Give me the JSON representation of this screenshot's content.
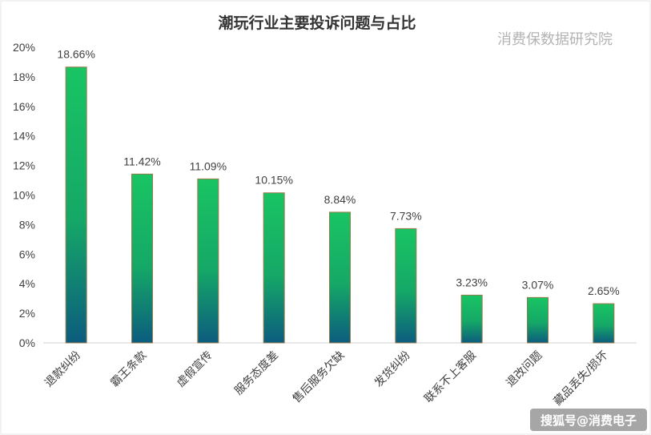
{
  "chart_data": {
    "type": "bar",
    "title": "潮玩行业主要投诉问题与占比",
    "categories": [
      "退款纠纷",
      "霸王条款",
      "虚假宣传",
      "服务态度差",
      "售后服务欠缺",
      "发货纠纷",
      "联系不上客服",
      "退改问题",
      "藏品丢失/损坏"
    ],
    "values": [
      18.66,
      11.42,
      11.09,
      10.15,
      8.84,
      7.73,
      3.23,
      3.07,
      2.65
    ],
    "data_labels": [
      "18.66%",
      "11.42%",
      "11.09%",
      "10.15%",
      "8.84%",
      "7.73%",
      "3.23%",
      "3.07%",
      "2.65%"
    ],
    "y_ticks": [
      "0%",
      "2%",
      "4%",
      "6%",
      "8%",
      "10%",
      "12%",
      "14%",
      "16%",
      "18%",
      "20%"
    ],
    "ylim": [
      0,
      20
    ],
    "xlabel": "",
    "ylabel": "",
    "grid": false,
    "legend": "none",
    "bar_gradient_top": "#19c463",
    "bar_gradient_bottom": "#0c5c7e",
    "bar_outline": "#9a7a4a"
  },
  "watermark": "消费保数据研究院",
  "corner_watermark": "搜狐号@消费电子"
}
